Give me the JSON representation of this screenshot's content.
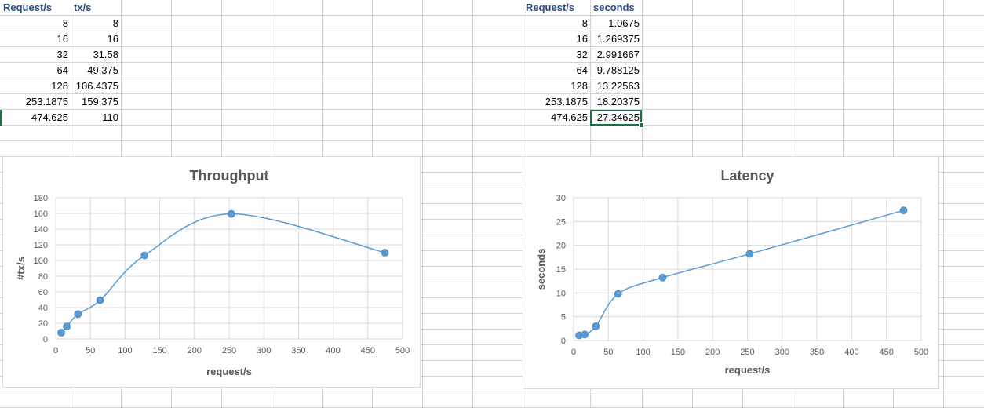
{
  "colors": {
    "gridline": "#d4d4d4",
    "header_text": "#2b4f81",
    "series": "#5b9bd5",
    "chart_grid": "#d9d9d9",
    "chart_title": "#595959",
    "selection": "#1e7145"
  },
  "sheet": {
    "table_left": {
      "headers": [
        "Request/s",
        "tx/s"
      ],
      "rows": [
        [
          "8",
          "8"
        ],
        [
          "16",
          "16"
        ],
        [
          "32",
          "31.58"
        ],
        [
          "64",
          "49.375"
        ],
        [
          "128",
          "106.4375"
        ],
        [
          "253.1875",
          "159.375"
        ],
        [
          "474.625",
          "110"
        ]
      ]
    },
    "table_right": {
      "headers": [
        "Request/s",
        "seconds"
      ],
      "rows": [
        [
          "8",
          "1.0675"
        ],
        [
          "16",
          "1.269375"
        ],
        [
          "32",
          "2.991667"
        ],
        [
          "64",
          "9.788125"
        ],
        [
          "128",
          "13.22563"
        ],
        [
          "253.1875",
          "18.20375"
        ],
        [
          "474.625",
          "27.34625"
        ]
      ],
      "selected_cell": "27.34625"
    }
  },
  "chart_data": [
    {
      "type": "scatter",
      "title": "Throughput",
      "xlabel": "request/s",
      "ylabel": "#tx/s",
      "x": [
        8,
        16,
        32,
        64,
        128,
        253.1875,
        474.625
      ],
      "series": [
        {
          "values": [
            8,
            16,
            31.58,
            49.375,
            106.4375,
            159.375,
            110
          ]
        }
      ],
      "xlim": [
        0,
        500
      ],
      "ylim": [
        0,
        180
      ],
      "xticks": [
        0,
        50,
        100,
        150,
        200,
        250,
        300,
        350,
        400,
        450,
        500
      ],
      "yticks": [
        0,
        20,
        40,
        60,
        80,
        100,
        120,
        140,
        160,
        180
      ],
      "smooth_line": true,
      "grid": true
    },
    {
      "type": "scatter",
      "title": "Latency",
      "xlabel": "request/s",
      "ylabel": "seconds",
      "x": [
        8,
        16,
        32,
        64,
        128,
        253.1875,
        474.625
      ],
      "series": [
        {
          "values": [
            1.0675,
            1.269375,
            2.991667,
            9.788125,
            13.22563,
            18.20375,
            27.34625
          ]
        }
      ],
      "xlim": [
        0,
        500
      ],
      "ylim": [
        0,
        30
      ],
      "xticks": [
        0,
        50,
        100,
        150,
        200,
        250,
        300,
        350,
        400,
        450,
        500
      ],
      "yticks": [
        0,
        5,
        10,
        15,
        20,
        25,
        30
      ],
      "smooth_line": true,
      "grid": true
    }
  ]
}
